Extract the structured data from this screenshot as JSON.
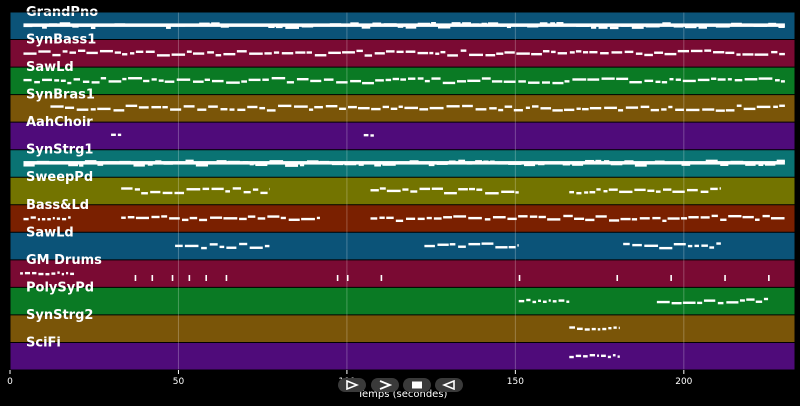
{
  "chart_data": {
    "type": "piano-roll",
    "xlabel": "Temps (secondes)",
    "xlim": [
      0,
      233
    ],
    "x_ticks": [
      0,
      50,
      100,
      150,
      200
    ],
    "grid": true,
    "tracks": [
      {
        "name": "GrandPno",
        "color": "#0b5378",
        "notes": [
          [
            4,
            230
          ]
        ]
      },
      {
        "name": "SynBass1",
        "color": "#7a0a33",
        "notes": [
          [
            4,
            230
          ]
        ]
      },
      {
        "name": "SawLd",
        "color": "#0a7a24",
        "notes": [
          [
            4,
            230
          ]
        ]
      },
      {
        "name": "SynBras1",
        "color": "#7a5508",
        "notes": [
          [
            12,
            230
          ]
        ]
      },
      {
        "name": "AahChoir",
        "color": "#4f0b7a",
        "notes": [
          [
            30,
            33
          ],
          [
            105,
            108
          ]
        ]
      },
      {
        "name": "SynStrg1",
        "color": "#0a7373",
        "notes": [
          [
            4,
            230
          ]
        ]
      },
      {
        "name": "SweepPd",
        "color": "#737400",
        "notes": [
          [
            33,
            77
          ],
          [
            107,
            151
          ],
          [
            166,
            211
          ]
        ]
      },
      {
        "name": "Bass&Ld",
        "color": "#7a2000",
        "notes": [
          [
            4,
            18
          ],
          [
            33,
            92
          ],
          [
            107,
            230
          ]
        ]
      },
      {
        "name": "SawLd",
        "color": "#0b5378",
        "notes": [
          [
            49,
            77
          ],
          [
            123,
            151
          ],
          [
            182,
            211
          ]
        ]
      },
      {
        "name": "GM Drums",
        "color": "#7a0a33",
        "notes": [
          [
            3,
            19
          ]
        ]
      },
      {
        "name": "PolySyPd",
        "color": "#0a7a24",
        "notes": [
          [
            151,
            166
          ],
          [
            192,
            225
          ]
        ]
      },
      {
        "name": "SynStrg2",
        "color": "#7a5508",
        "notes": [
          [
            166,
            181
          ]
        ]
      },
      {
        "name": "SciFi",
        "color": "#4f0b7a",
        "notes": [
          [
            166,
            181
          ]
        ]
      }
    ]
  },
  "transport": {
    "play_icon": "play-outline-icon",
    "forward_icon": "chevron-right-icon",
    "stop_icon": "stop-icon",
    "back_icon": "back-triangle-icon"
  }
}
